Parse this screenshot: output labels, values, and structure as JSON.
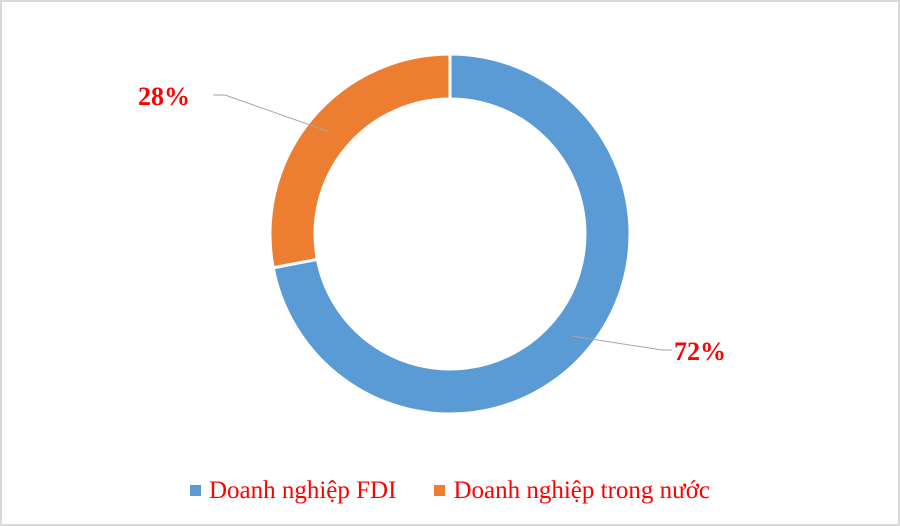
{
  "chart_data": {
    "type": "pie",
    "variant": "doughnut",
    "title": "",
    "categories": [
      "Doanh nghiệp FDI",
      "Doanh nghiệp trong nước"
    ],
    "values": [
      72,
      28
    ],
    "value_labels": [
      "72%",
      "28%"
    ],
    "colors": [
      "#5b9bd5",
      "#ed7d31"
    ],
    "legend_position": "bottom",
    "label_color": "#ff0000"
  },
  "labels": {
    "fdi": "72%",
    "domestic": "28%"
  },
  "legend": {
    "items": [
      {
        "label": "Doanh nghiệp FDI",
        "color": "#5b9bd5"
      },
      {
        "label": "Doanh nghiệp trong nước",
        "color": "#ed7d31"
      }
    ]
  }
}
